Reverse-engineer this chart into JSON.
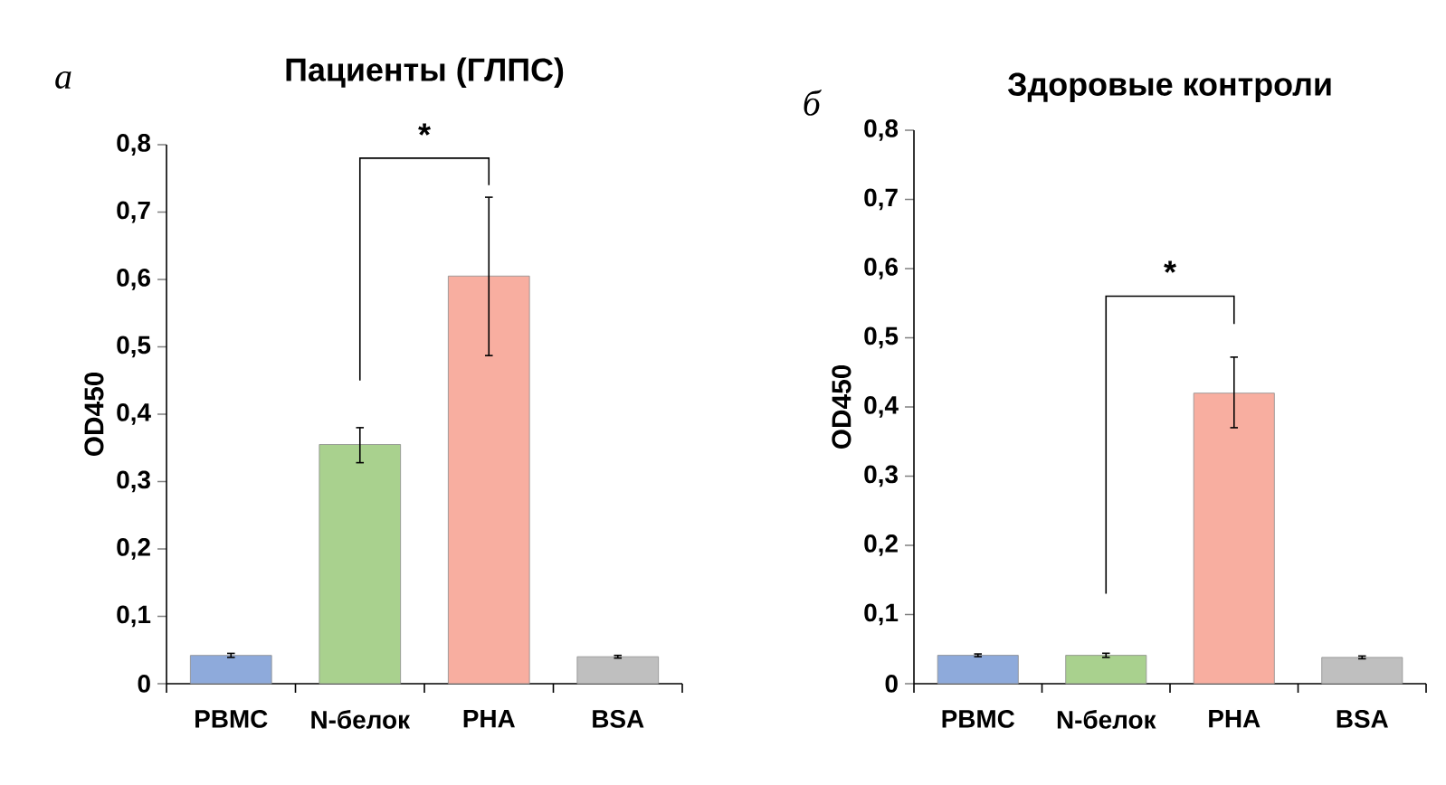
{
  "chart_data": [
    {
      "type": "bar",
      "title": "Пациенты (ГЛПС)",
      "ylabel": "OD450",
      "categories": [
        "PBMC",
        "N-белок",
        "PHA",
        "BSA"
      ],
      "values": [
        0.042,
        0.355,
        0.605,
        0.04
      ],
      "errors": [
        0.003,
        [
          0.328,
          0.38
        ],
        [
          0.487,
          0.722
        ],
        0.002
      ],
      "colors": [
        "#8eaadb",
        "#a9d18e",
        "#f8aea0",
        "#bfbfbf"
      ],
      "ylim": [
        0,
        0.8
      ],
      "yticks": [
        0,
        {
          "value": 0.1,
          "label": "0,1"
        },
        {
          "value": 0.2,
          "label": "0,2"
        },
        {
          "value": 0.3,
          "label": "0,3"
        },
        {
          "value": 0.4,
          "label": "0,4"
        },
        {
          "value": 0.5,
          "label": "0,5"
        },
        {
          "value": 0.6,
          "label": "0,6"
        },
        {
          "value": 0.7,
          "label": "0,7"
        },
        {
          "value": 0.8,
          "label": "0,8"
        }
      ],
      "annotations": [
        "а",
        "*"
      ]
    },
    {
      "type": "bar",
      "title": "Здоровые контроли",
      "ylabel": "OD450",
      "categories": [
        "PBMC",
        "N-белок",
        "PHA",
        "BSA"
      ],
      "values": [
        0.041,
        0.041,
        0.42,
        0.038
      ],
      "errors": [
        0.002,
        0.003,
        [
          0.37,
          0.472
        ],
        0.002
      ],
      "colors": [
        "#8eaadb",
        "#a9d18e",
        "#f8aea0",
        "#bfbfbf"
      ],
      "ylim": [
        0,
        0.8
      ],
      "yticks": [
        0,
        {
          "value": 0.1,
          "label": "0,1"
        },
        {
          "value": 0.2,
          "label": "0,2"
        },
        {
          "value": 0.3,
          "label": "0,3"
        },
        {
          "value": 0.4,
          "label": "0,4"
        },
        {
          "value": 0.5,
          "label": "0,5"
        },
        {
          "value": 0.6,
          "label": "0,6"
        },
        {
          "value": 0.7,
          "label": "0,7"
        },
        {
          "value": 0.8,
          "label": "0,8"
        }
      ],
      "annotations": [
        "б",
        "*"
      ]
    }
  ]
}
